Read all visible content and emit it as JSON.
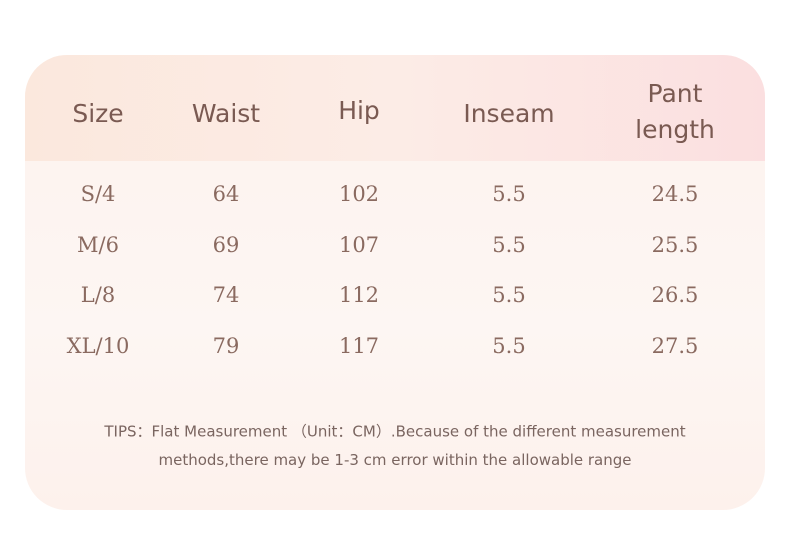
{
  "table": {
    "header": [
      "Size",
      "Waist",
      "Hip",
      "Inseam",
      "Pant length"
    ],
    "rows": [
      [
        "S/4",
        "64",
        "102",
        "5.5",
        "24.5"
      ],
      [
        "M/6",
        "69",
        "107",
        "5.5",
        "25.5"
      ],
      [
        "L/8",
        "74",
        "112",
        "5.5",
        "26.5"
      ],
      [
        "XL/10",
        "79",
        "117",
        "5.5",
        "27.5"
      ]
    ]
  },
  "tips": [
    "TIPS：Flat Measurement （Unit：CM）.Because of the different measurement",
    "methods,there may be 1-3 cm error within the allowable range"
  ]
}
